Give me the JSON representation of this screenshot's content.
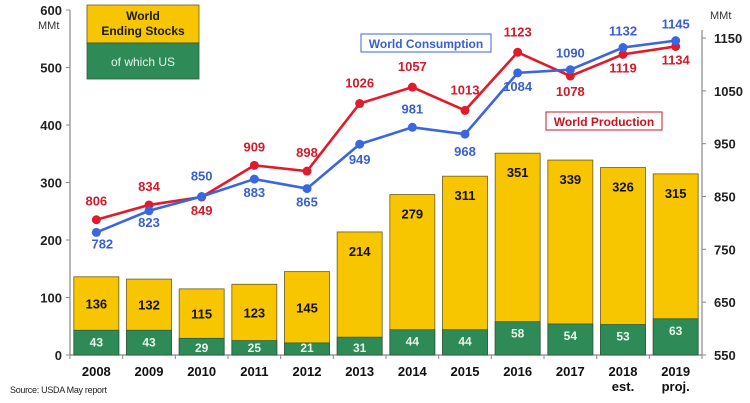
{
  "chart_data": {
    "type": "bar+line",
    "title": "",
    "categories": [
      "2008",
      "2009",
      "2010",
      "2011",
      "2012",
      "2013",
      "2014",
      "2015",
      "2016",
      "2017",
      "2018",
      "2019"
    ],
    "category_sublabels": [
      "",
      "",
      "",
      "",
      "",
      "",
      "",
      "",
      "",
      "",
      "est.",
      "proj."
    ],
    "left_axis": {
      "unit": "MMt",
      "ticks": [
        0,
        100,
        200,
        300,
        400,
        500,
        600
      ],
      "range": [
        0,
        600
      ]
    },
    "right_axis": {
      "unit": "MMt",
      "ticks": [
        550,
        650,
        750,
        850,
        950,
        1050,
        1150
      ],
      "range": [
        550,
        1150
      ]
    },
    "series": [
      {
        "name": "World Ending Stocks",
        "type": "bar",
        "axis": "left",
        "color": "#f7c600",
        "values": [
          136,
          132,
          115,
          123,
          145,
          214,
          279,
          311,
          351,
          339,
          326,
          315
        ]
      },
      {
        "name": "of which US",
        "type": "bar",
        "axis": "left",
        "color": "#2e8b57",
        "values": [
          43,
          43,
          29,
          25,
          21,
          31,
          44,
          44,
          58,
          54,
          53,
          63
        ]
      },
      {
        "name": "World Consumption",
        "type": "line",
        "axis": "right",
        "color": "#3a66e0",
        "values": [
          782,
          823,
          850,
          883,
          865,
          949,
          981,
          968,
          1084,
          1090,
          1132,
          1145
        ]
      },
      {
        "name": "World Production",
        "type": "line",
        "axis": "right",
        "color": "#e01b2b",
        "values": [
          806,
          834,
          849,
          909,
          898,
          1026,
          1057,
          1013,
          1123,
          1078,
          1119,
          1134
        ]
      }
    ],
    "legend": {
      "stocks_box": {
        "line1": "World",
        "line2": "Ending Stocks",
        "sub": "of which US"
      },
      "consumption_label": "World Consumption",
      "production_label": "World Production"
    },
    "grid": false
  },
  "source": "Source: USDA May report"
}
